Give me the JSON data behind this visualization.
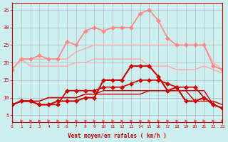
{
  "x": [
    0,
    1,
    2,
    3,
    4,
    5,
    6,
    7,
    8,
    9,
    10,
    11,
    12,
    13,
    14,
    15,
    16,
    17,
    18,
    19,
    20,
    21,
    22,
    23
  ],
  "lines": [
    {
      "values": [
        18,
        21,
        19,
        19,
        19,
        19,
        19,
        20,
        20,
        21,
        21,
        21,
        21,
        21,
        21,
        19,
        19,
        19,
        18,
        18,
        18,
        19,
        18,
        17
      ],
      "color": "#ffaaaa",
      "lw": 1.0,
      "marker": null,
      "markersize": 0
    },
    {
      "values": [
        18,
        21,
        21,
        21,
        21,
        21,
        21,
        23,
        24,
        25,
        25,
        25,
        25,
        25,
        25,
        25,
        25,
        25,
        25,
        25,
        25,
        25,
        20,
        18
      ],
      "color": "#ffaaaa",
      "lw": 1.0,
      "marker": null,
      "markersize": 0
    },
    {
      "values": [
        18,
        21,
        21,
        22,
        21,
        21,
        26,
        25,
        29,
        30,
        29,
        30,
        30,
        30,
        34,
        35,
        32,
        27,
        25,
        25,
        25,
        25,
        19,
        18
      ],
      "color": "#ff8888",
      "lw": 1.2,
      "marker": "D",
      "markersize": 3
    },
    {
      "values": [
        8,
        9,
        9,
        8,
        8,
        8,
        12,
        12,
        12,
        12,
        13,
        13,
        13,
        14,
        15,
        15,
        15,
        14,
        13,
        13,
        13,
        10,
        8,
        7
      ],
      "color": "#cc0000",
      "lw": 1.2,
      "marker": "D",
      "markersize": 3
    },
    {
      "values": [
        8,
        9,
        9,
        9,
        10,
        10,
        10,
        10,
        11,
        11,
        11,
        11,
        11,
        11,
        11,
        12,
        12,
        12,
        12,
        12,
        12,
        12,
        8,
        7
      ],
      "color": "#cc0000",
      "lw": 1.0,
      "marker": null,
      "markersize": 0
    },
    {
      "values": [
        8,
        9,
        9,
        9,
        10,
        10,
        10,
        10,
        11,
        11,
        12,
        12,
        12,
        12,
        12,
        12,
        12,
        12,
        12,
        12,
        9,
        9,
        9,
        8
      ],
      "color": "#cc0000",
      "lw": 1.0,
      "marker": null,
      "markersize": 0
    },
    {
      "values": [
        8,
        9,
        9,
        8,
        8,
        9,
        9,
        9,
        10,
        10,
        15,
        15,
        15,
        19,
        19,
        19,
        16,
        12,
        13,
        9,
        9,
        10,
        8,
        7
      ],
      "color": "#cc0000",
      "lw": 1.5,
      "marker": "D",
      "markersize": 3
    },
    {
      "values": [
        3.5,
        3.5,
        3.5,
        3.5,
        3.5,
        3.5,
        3.5,
        3.5,
        3.5,
        3.5,
        3.5,
        3.5,
        3.5,
        3.5,
        3.5,
        3.5,
        3.5,
        3.5,
        3.5,
        3.5,
        3.5,
        3.5,
        3.5,
        3.5
      ],
      "color": "#ff4444",
      "lw": 0.0,
      "marker": ">",
      "markersize": 2.5
    }
  ],
  "xlabel": "Vent moyen/en rafales ( km/h )",
  "ylabel_ticks": [
    5,
    10,
    15,
    20,
    25,
    30,
    35
  ],
  "xlim": [
    0,
    23
  ],
  "ylim": [
    3,
    37
  ],
  "bg_color": "#cceeee",
  "grid_color": "#aaaaaa",
  "axis_color": "#cc0000",
  "tick_color": "#cc0000",
  "label_color": "#cc0000"
}
